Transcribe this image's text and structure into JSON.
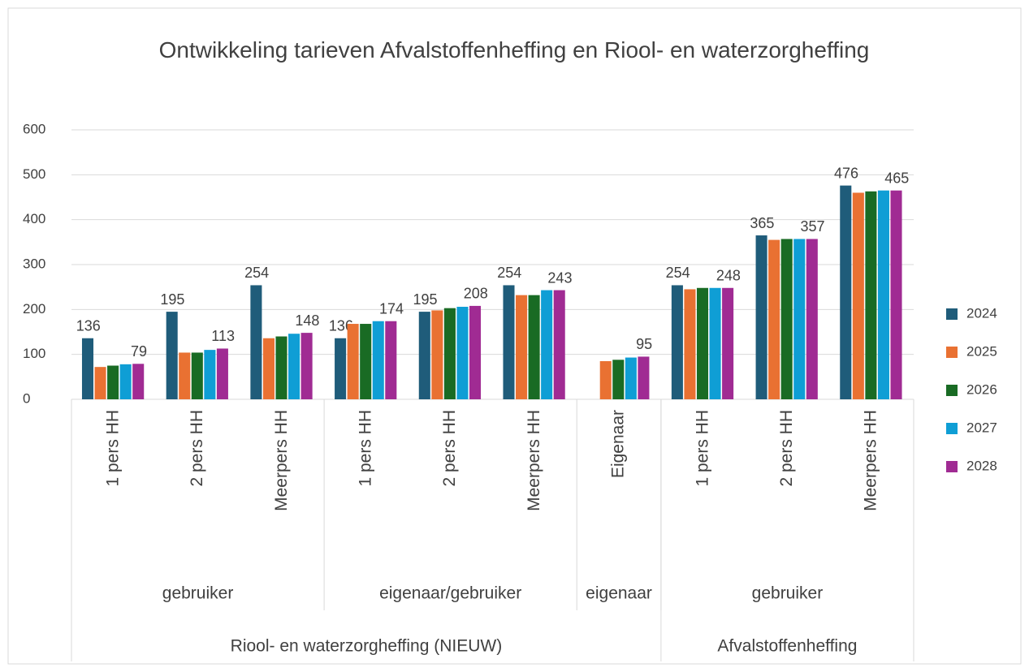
{
  "chart_data": {
    "type": "bar",
    "title": "Ontwikkeling tarieven Afvalstoffenheffing en Riool- en waterzorgheffing",
    "category_groups": [
      {
        "label": "Riool- en waterzorgheffing (NIEUW)",
        "groups": [
          {
            "label": "gebruiker",
            "categories": [
              "1 pers HH",
              "2 pers HH",
              "Meerpers HH"
            ]
          },
          {
            "label": "eigenaar/gebruiker",
            "categories": [
              "1 pers HH",
              "2 pers HH",
              "Meerpers HH"
            ]
          },
          {
            "label": "eigenaar",
            "categories": [
              "Eigenaar"
            ]
          }
        ]
      },
      {
        "label": "Afvalstoffenheffing",
        "groups": [
          {
            "label": "gebruiker",
            "categories": [
              "1 pers HH",
              "2 pers HH",
              "Meerpers HH"
            ]
          }
        ]
      }
    ],
    "series": [
      {
        "name": "2024",
        "color": "#1f5c7a",
        "data_labels": true,
        "values": [
          136,
          195,
          254,
          136,
          195,
          254,
          null,
          254,
          365,
          476
        ]
      },
      {
        "name": "2025",
        "color": "#e97132",
        "data_labels": false,
        "values": [
          72,
          104,
          136,
          168,
          198,
          232,
          85,
          245,
          355,
          460
        ]
      },
      {
        "name": "2026",
        "color": "#196b24",
        "data_labels": false,
        "values": [
          75,
          104,
          140,
          168,
          203,
          232,
          88,
          248,
          357,
          463
        ]
      },
      {
        "name": "2027",
        "color": "#0f9ed5",
        "data_labels": false,
        "values": [
          78,
          110,
          146,
          174,
          206,
          243,
          93,
          248,
          357,
          465
        ]
      },
      {
        "name": "2028",
        "color": "#a02b93",
        "data_labels": true,
        "values": [
          79,
          113,
          148,
          174,
          208,
          243,
          95,
          248,
          357,
          465
        ]
      }
    ],
    "ylim": [
      0,
      600
    ],
    "yticks": [
      0,
      100,
      200,
      300,
      400,
      500,
      600
    ],
    "grid": true,
    "legend": "right"
  }
}
